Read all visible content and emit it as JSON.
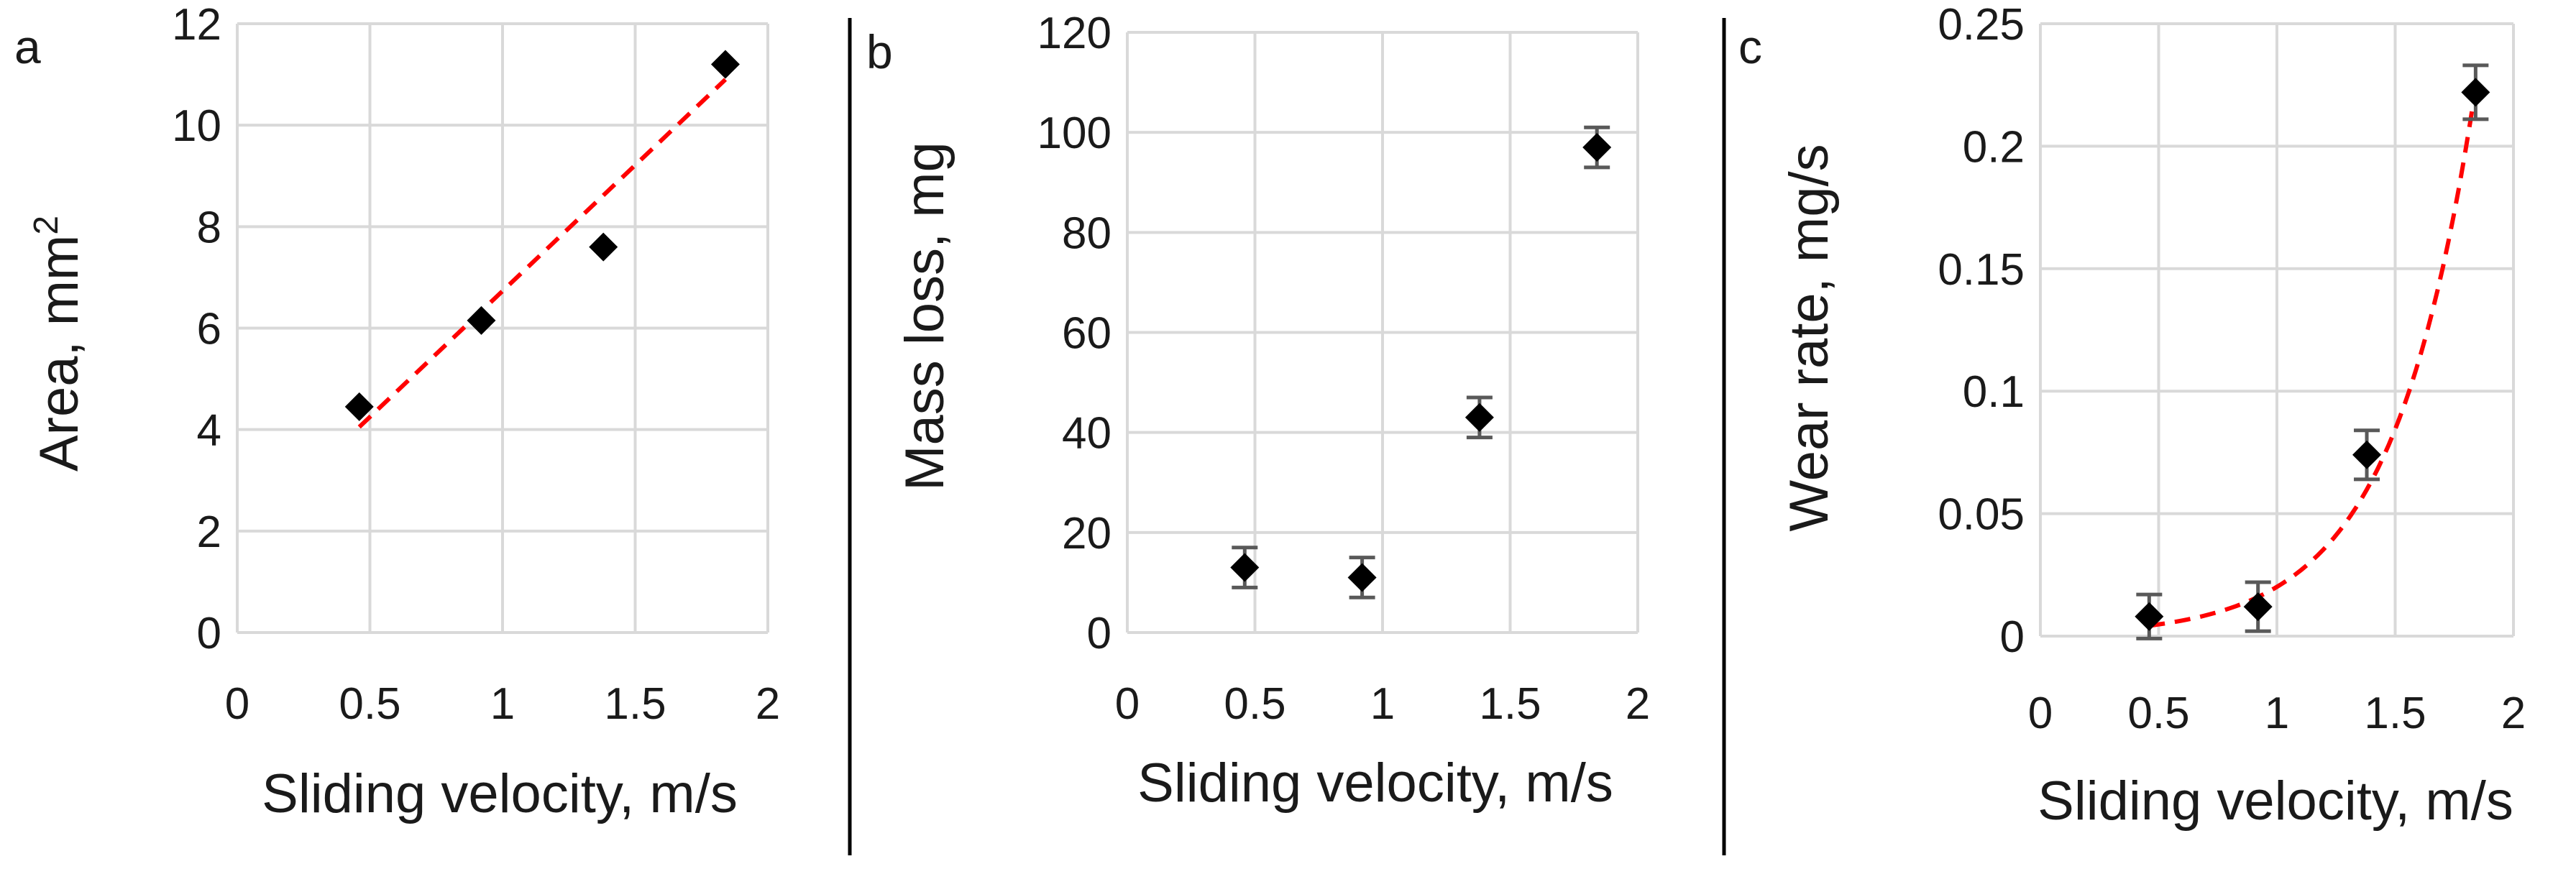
{
  "colors": {
    "grid": "#d9d9d9",
    "marker": "#000000",
    "errorbar": "#595959",
    "trendline": "#ff0000",
    "divider": "#000000"
  },
  "chart_data": [
    {
      "panel": "a",
      "type": "scatter",
      "xlabel": "Sliding velocity, m/s",
      "ylabel": "Area, mm",
      "ylabel_superscript": "2",
      "xlim": [
        0,
        2
      ],
      "ylim": [
        0,
        12
      ],
      "xticks": [
        "0",
        "0.5",
        "1",
        "1.5",
        "2"
      ],
      "yticks": [
        "0",
        "2",
        "4",
        "6",
        "8",
        "10",
        "12"
      ],
      "grid": true,
      "series": [
        {
          "name": "Area",
          "x": [
            0.46,
            0.92,
            1.38,
            1.84
          ],
          "y": [
            4.45,
            6.15,
            7.6,
            11.2
          ],
          "error": []
        }
      ],
      "trendline": {
        "type": "linear",
        "x": [
          0.46,
          1.84
        ],
        "y": [
          4.05,
          10.9
        ]
      }
    },
    {
      "panel": "b",
      "type": "scatter",
      "xlabel": "Sliding velocity, m/s",
      "ylabel": "Mass loss, mg",
      "xlim": [
        0,
        2
      ],
      "ylim": [
        0,
        120
      ],
      "xticks": [
        "0",
        "0.5",
        "1",
        "1.5",
        "2"
      ],
      "yticks": [
        "0",
        "20",
        "40",
        "60",
        "80",
        "100",
        "120"
      ],
      "grid": true,
      "series": [
        {
          "name": "Mass loss",
          "x": [
            0.46,
            0.92,
            1.38,
            1.84
          ],
          "y": [
            13,
            11,
            43,
            97
          ],
          "error": [
            4,
            4,
            4,
            4
          ]
        }
      ]
    },
    {
      "panel": "c",
      "type": "scatter",
      "xlabel": "Sliding velocity, m/s",
      "ylabel": "Wear rate, mg/s",
      "xlim": [
        0,
        2
      ],
      "ylim": [
        0,
        0.25
      ],
      "xticks": [
        "0",
        "0.5",
        "1",
        "1.5",
        "2"
      ],
      "yticks": [
        "0",
        "0.05",
        "0.1",
        "0.15",
        "0.2",
        "0.25"
      ],
      "grid": true,
      "series": [
        {
          "name": "Wear rate",
          "x": [
            0.46,
            0.92,
            1.38,
            1.84
          ],
          "y": [
            0.008,
            0.012,
            0.074,
            0.222
          ],
          "error": [
            0.009,
            0.01,
            0.01,
            0.011
          ]
        }
      ],
      "trendline": {
        "type": "exponential",
        "x0": 0.46,
        "x1": 1.84,
        "a": 0.00114,
        "b": 2.87
      }
    }
  ]
}
